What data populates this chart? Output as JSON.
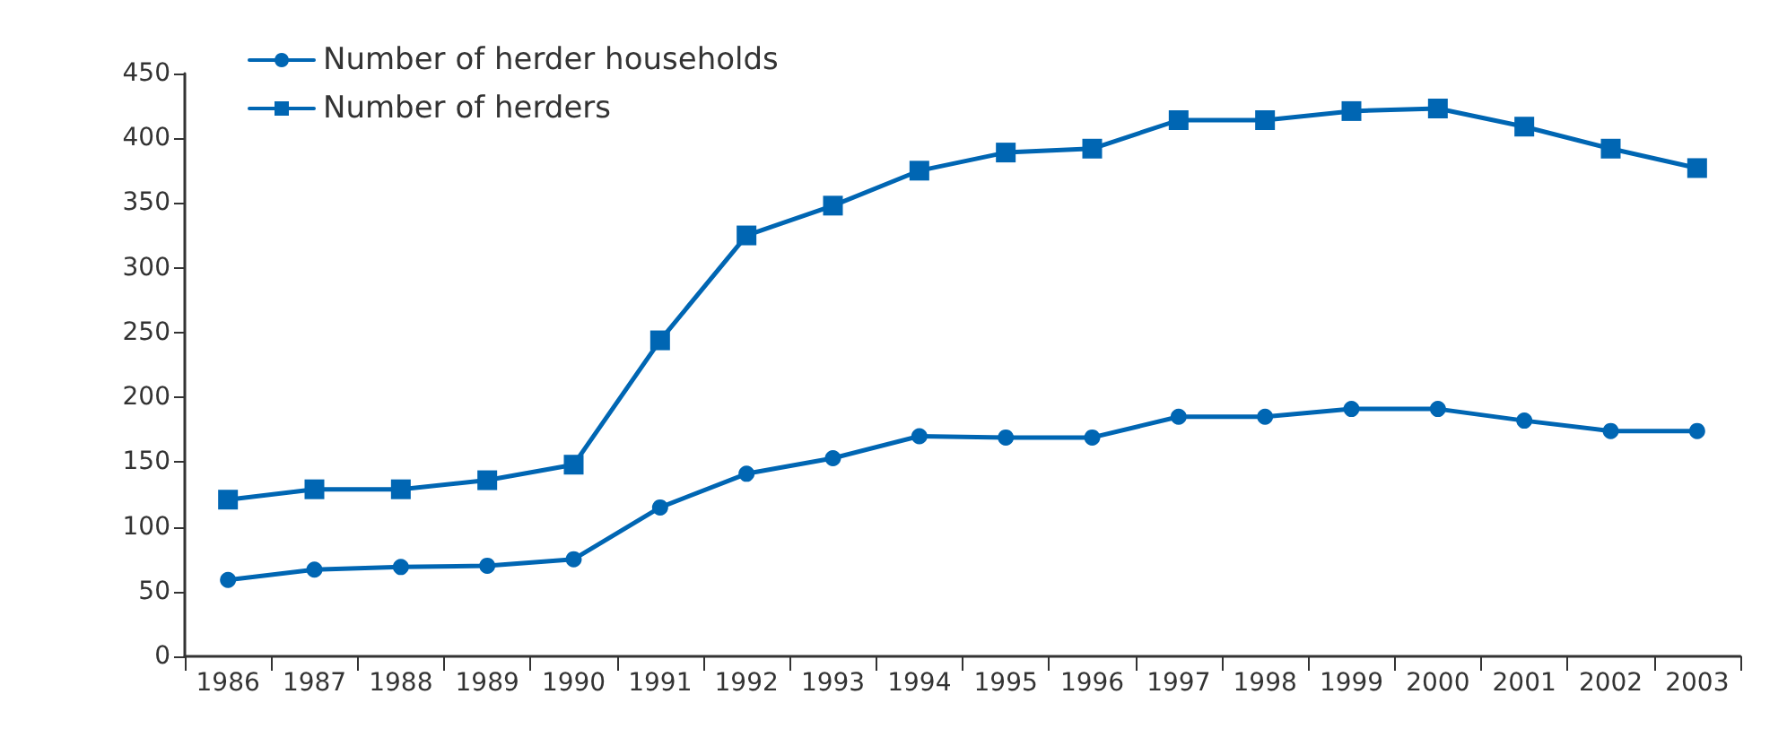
{
  "chart_data": {
    "type": "line",
    "categories": [
      "1986",
      "1987",
      "1988",
      "1989",
      "1990",
      "1991",
      "1992",
      "1993",
      "1994",
      "1995",
      "1996",
      "1997",
      "1998",
      "1999",
      "2000",
      "2001",
      "2002",
      "2003"
    ],
    "series": [
      {
        "name": "Number of herder households",
        "color": "#0066b3",
        "marker": "circle",
        "values": [
          59,
          67,
          69,
          70,
          75,
          115,
          141,
          153,
          170,
          169,
          169,
          185,
          185,
          191,
          191,
          182,
          174,
          174
        ]
      },
      {
        "name": "Number of herders",
        "color": "#0066b3",
        "marker": "square",
        "values": [
          121,
          129,
          129,
          136,
          148,
          244,
          325,
          348,
          375,
          389,
          392,
          414,
          414,
          421,
          423,
          409,
          392,
          377
        ]
      }
    ],
    "ylim": [
      0,
      450
    ],
    "yticks": [
      0,
      50,
      100,
      150,
      200,
      250,
      300,
      350,
      400,
      450
    ],
    "grid": false,
    "legend": "top left",
    "line_style": "solid"
  }
}
